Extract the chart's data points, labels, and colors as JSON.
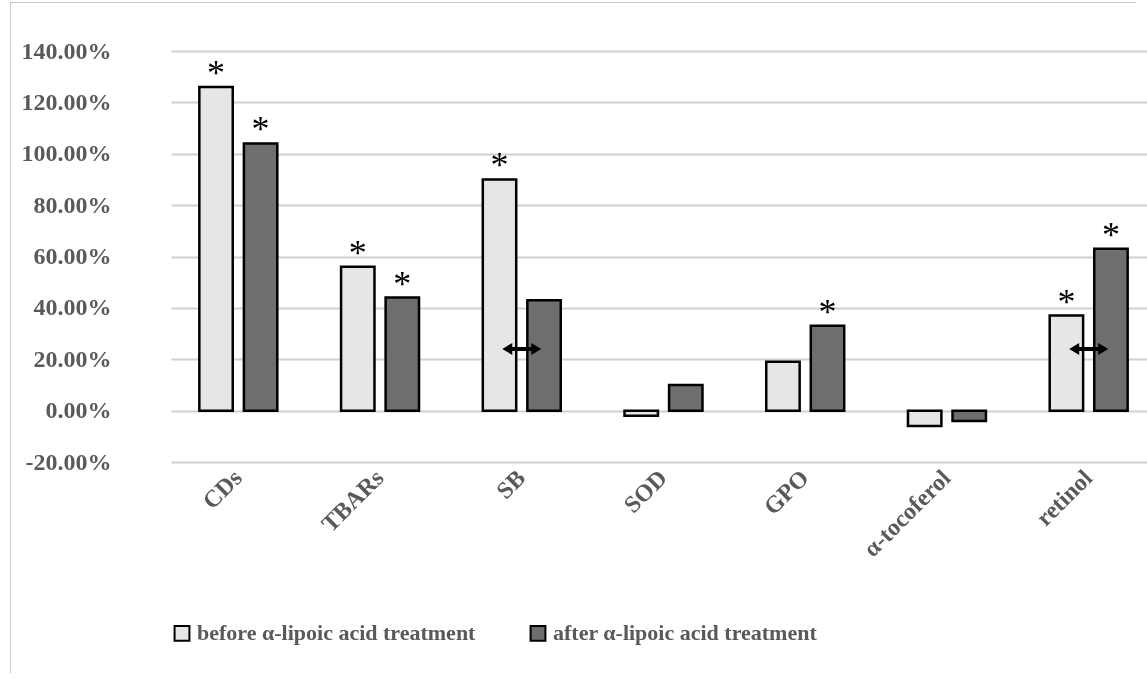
{
  "chart_data": {
    "type": "bar",
    "categories": [
      "CDs",
      "TBARs",
      "SB",
      "SOD",
      "GPO",
      "α-tocoferol",
      "retinol"
    ],
    "series": [
      {
        "name": "before α-lipoic acid treatment",
        "color": "#e6e6e6",
        "values": [
          126,
          56,
          90,
          -2,
          19,
          -6,
          37
        ],
        "value_labels": [
          "*",
          "*",
          "*",
          null,
          null,
          null,
          "*"
        ]
      },
      {
        "name": "after α-lipoic acid treatment",
        "color": "#6e6e6e",
        "values": [
          104,
          44,
          43,
          10,
          33,
          -4,
          63
        ],
        "value_labels": [
          "*",
          "*",
          null,
          null,
          "*",
          null,
          "*"
        ]
      }
    ],
    "ylim": [
      -20,
      140
    ],
    "yticks": [
      {
        "value": -20,
        "label": "-20.00%"
      },
      {
        "value": 0,
        "label": "0.00%"
      },
      {
        "value": 20,
        "label": "20.00%"
      },
      {
        "value": 40,
        "label": "40.00%"
      },
      {
        "value": 60,
        "label": "60.00%"
      },
      {
        "value": 80,
        "label": "80.00%"
      },
      {
        "value": 100,
        "label": "100.00%"
      },
      {
        "value": 120,
        "label": "120.00%"
      },
      {
        "value": 140,
        "label": "140.00%"
      }
    ],
    "grid": "y",
    "legend": "bottom"
  }
}
